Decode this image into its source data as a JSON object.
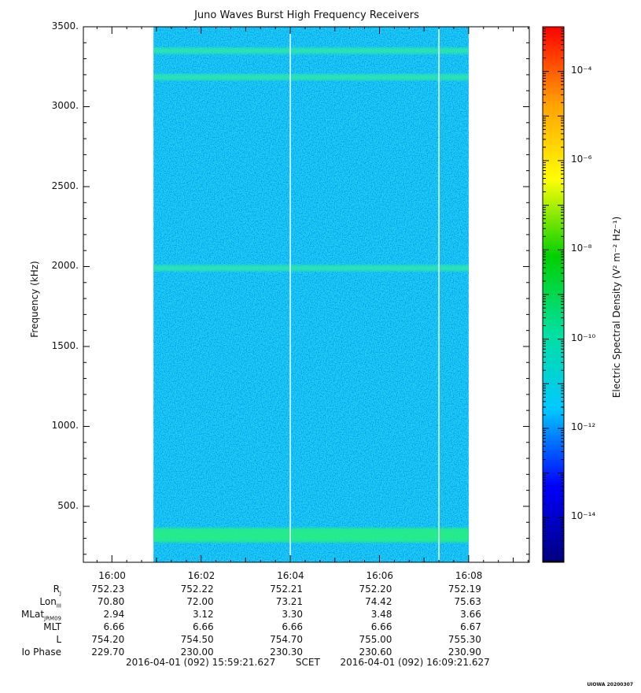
{
  "chart_data": {
    "type": "heatmap",
    "title": "Juno Waves Burst High Frequency Receivers",
    "ylabel": "Frequency (kHz)",
    "xlabel": "SCET",
    "ylim": [
      150,
      3500
    ],
    "yticks": [
      500,
      1000,
      1500,
      2000,
      2500,
      3000,
      3500
    ],
    "ytick_labels": [
      "500.",
      "1000.",
      "1500.",
      "2000.",
      "2500.",
      "3000.",
      "3500."
    ],
    "xticks": [
      "16:00",
      "16:02",
      "16:04",
      "16:06",
      "16:08"
    ],
    "data_time_range": [
      "15:59:21.627",
      "16:09:21.627"
    ],
    "data_coverage": [
      "16:00:56",
      "16:08:00"
    ],
    "gap_lines": [
      "16:04:00",
      "16:07:20"
    ],
    "emission_bands_khz": [
      3350,
      3185,
      1990,
      320
    ],
    "background_level": "1e-12",
    "colorbar": {
      "label": "Electric Spectral Density (V² m⁻² Hz⁻¹)",
      "scale": "log",
      "range": [
        "1e-15",
        "1e-3"
      ],
      "tick_labels": [
        "10⁻⁴",
        "10⁻⁶",
        "10⁻⁸",
        "10⁻¹⁰",
        "10⁻¹²",
        "10⁻¹⁴"
      ],
      "tick_exponents": [
        -4,
        -6,
        -8,
        -10,
        -12,
        -14
      ],
      "colors": [
        "#00007f",
        "#0000ff",
        "#00c8ff",
        "#00e0a0",
        "#00d000",
        "#ffff00",
        "#ffa000",
        "#ff0000"
      ]
    },
    "ephemeris": {
      "row_labels": {
        "rj": "R",
        "rj_sub": "J",
        "lon": "Lon",
        "lon_sub": "III",
        "mlat": "MLat",
        "mlat_sub": "JRM09",
        "mlt": "MLT",
        "l": "L",
        "io": "Io Phase"
      },
      "rows": [
        [
          "752.23",
          "752.22",
          "752.21",
          "752.20",
          "752.19"
        ],
        [
          "70.80",
          "72.00",
          "73.21",
          "74.42",
          "75.63"
        ],
        [
          "2.94",
          "3.12",
          "3.30",
          "3.48",
          "3.66"
        ],
        [
          "6.66",
          "6.66",
          "6.66",
          "6.66",
          "6.67"
        ],
        [
          "754.20",
          "754.50",
          "754.70",
          "755.00",
          "755.30"
        ],
        [
          "229.70",
          "230.00",
          "230.30",
          "230.60",
          "230.90"
        ]
      ]
    }
  },
  "footer": {
    "start": "2016-04-01 (092) 15:59:21.627",
    "middle": "SCET",
    "end": "2016-04-01 (092) 16:09:21.627"
  },
  "stamp": "UIOWA 20200307"
}
